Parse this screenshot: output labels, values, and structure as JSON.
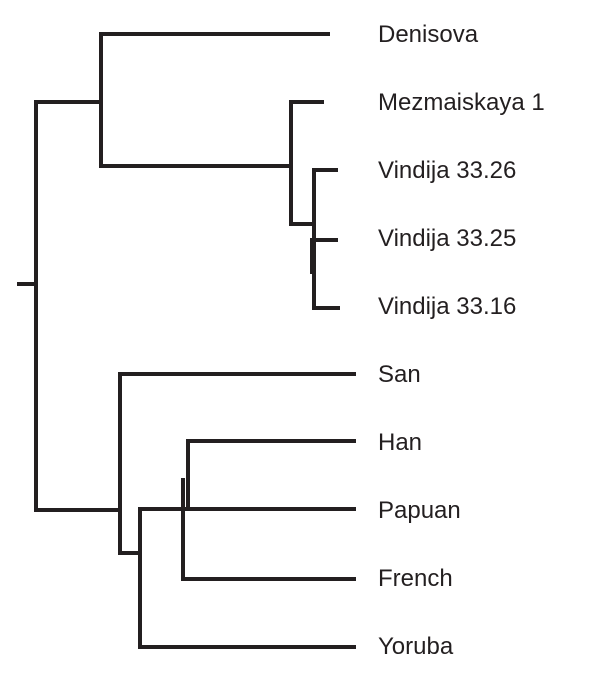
{
  "diagram": {
    "type": "phylogenetic-tree",
    "line_color": "#231f20",
    "text_color": "#231f20",
    "background": "#ffffff",
    "taxa": [
      "Denisova",
      "Mezmaiskaya 1",
      "Vindija 33.26",
      "Vindija 33.25",
      "Vindija 33.16",
      "San",
      "Han",
      "Papuan",
      "French",
      "Yoruba"
    ],
    "topology": "((Denisova,(Mezmaiskaya 1,((Vindija 33.26,Vindija 33.25),Vindija 33.16))),(San,(((Han,Papuan),French),Yoruba)))"
  }
}
